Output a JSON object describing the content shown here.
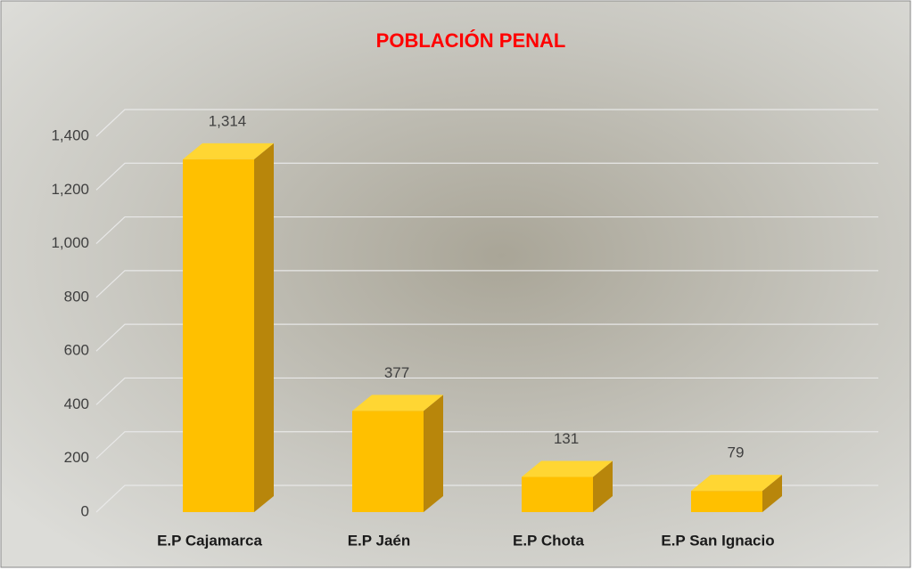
{
  "chart_data": {
    "type": "bar3d",
    "title": "POBLACIÓN PENAL",
    "categories": [
      "E.P Cajamarca",
      "E.P Jaén",
      "E.P Chota",
      "E.P San Ignacio"
    ],
    "values": [
      1314,
      377,
      131,
      79
    ],
    "value_labels": [
      "1,314",
      "377",
      "131",
      "79"
    ],
    "color": "#ffc000",
    "ylim": [
      0,
      1400
    ],
    "yticks": [
      0,
      200,
      400,
      600,
      800,
      {
        "value": 1000,
        "label": "1,000"
      },
      {
        "value": 1200,
        "label": "1,200"
      },
      {
        "value": 1400,
        "label": "1,400"
      }
    ],
    "grid": true
  }
}
